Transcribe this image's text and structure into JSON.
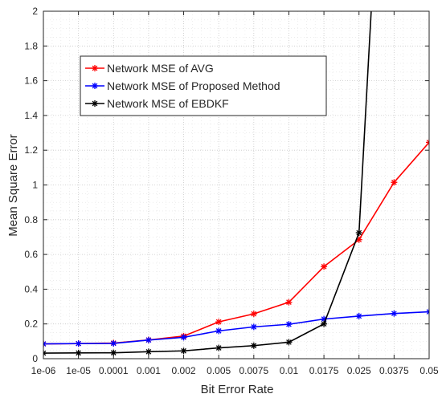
{
  "chart_data": {
    "type": "line",
    "title": "",
    "xlabel": "Bit Error Rate",
    "ylabel": "Mean Square Error",
    "ylim": [
      0,
      2
    ],
    "yticks": [
      "0",
      "0.2",
      "0.4",
      "0.6",
      "0.8",
      "1",
      "1.2",
      "1.4",
      "1.6",
      "1.8",
      "2"
    ],
    "categories": [
      "1e-06",
      "1e-05",
      "0.0001",
      "0.001",
      "0.002",
      "0.005",
      "0.0075",
      "0.01",
      "0.0175",
      "0.025",
      "0.0375",
      "0.05"
    ],
    "grid": true,
    "legend_position": "upper-left",
    "series": [
      {
        "name": "Network MSE of AVG",
        "color": "#ff0000",
        "marker": "asterisk",
        "values": [
          0.085,
          0.087,
          0.09,
          0.108,
          0.13,
          0.212,
          0.258,
          0.325,
          0.53,
          0.685,
          1.015,
          1.245
        ]
      },
      {
        "name": "Network MSE of Proposed Method",
        "color": "#0000ff",
        "marker": "asterisk",
        "values": [
          0.085,
          0.087,
          0.088,
          0.107,
          0.123,
          0.16,
          0.183,
          0.198,
          0.228,
          0.245,
          0.26,
          0.27
        ]
      },
      {
        "name": "Network MSE of EBDKF",
        "color": "#000000",
        "marker": "asterisk",
        "values": [
          0.032,
          0.033,
          0.034,
          0.04,
          0.045,
          0.062,
          0.075,
          0.095,
          0.2,
          0.725,
          null,
          null
        ],
        "exits_top_at_x": 9.35
      }
    ]
  }
}
